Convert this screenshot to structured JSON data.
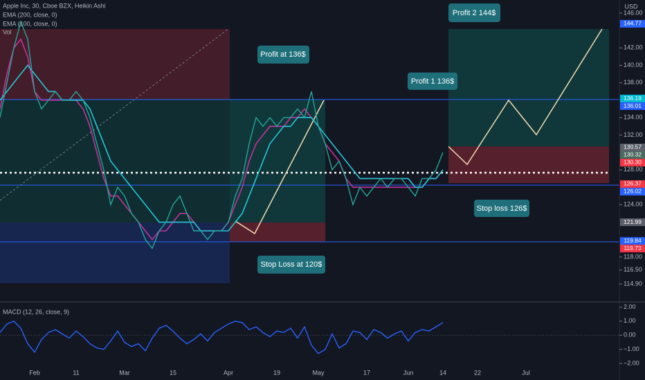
{
  "chart_data": [
    {
      "type": "line",
      "title": "Apple Inc, 30, Cboe BZX, Heikin Ashi",
      "currency": "USD",
      "volume_label": "Vol",
      "categories": [
        null,
        null,
        null,
        null,
        null,
        "Feb",
        null,
        null,
        null,
        null,
        null,
        "11",
        null,
        null,
        null,
        null,
        null,
        null,
        "Mar",
        null,
        null,
        null,
        null,
        null,
        null,
        "15",
        null,
        null,
        null,
        null,
        null,
        null,
        null,
        "Apr",
        null,
        null,
        null,
        null,
        null,
        null,
        "19",
        null,
        null,
        null,
        null,
        null,
        "May",
        null,
        null,
        null,
        null,
        null,
        null,
        "17",
        null,
        null,
        null,
        null,
        null,
        "Jun",
        null,
        null,
        null,
        null,
        "14",
        null,
        null,
        null,
        null,
        "22",
        null,
        null,
        null,
        null,
        null,
        null,
        "Jul"
      ],
      "values": [
        134,
        138,
        142,
        145,
        143,
        137,
        135,
        136,
        137,
        136,
        136,
        137,
        136,
        134,
        131,
        128,
        124,
        126,
        125,
        123,
        122,
        120,
        119,
        121,
        122,
        124,
        125,
        123,
        121,
        121,
        120,
        121,
        121,
        122,
        125,
        127,
        131,
        134,
        133,
        134,
        133,
        134,
        134,
        135,
        134,
        137,
        133,
        131,
        128,
        129,
        127,
        124,
        126,
        125,
        126,
        127,
        126,
        127,
        127,
        126,
        125,
        127,
        127,
        128,
        130,
        null,
        null,
        null,
        null,
        null,
        null,
        null,
        null,
        null,
        null,
        null,
        null
      ],
      "color": "#26a69a",
      "series": [
        {
          "name": "EMA (200, close, 0)",
          "color": "#c2349d",
          "values": [
            135,
            139,
            142,
            143,
            141,
            137,
            136,
            136,
            136,
            136,
            136,
            136,
            135,
            133,
            130,
            127,
            125,
            125,
            124,
            123,
            122,
            121,
            120,
            121,
            121,
            122,
            123,
            123,
            122,
            121,
            121,
            121,
            121,
            122,
            124,
            126,
            129,
            131,
            132,
            133,
            133,
            133,
            134,
            134,
            135,
            134,
            133,
            131,
            130,
            129,
            127,
            126,
            126,
            126,
            126,
            126,
            126,
            126,
            126,
            126,
            126,
            126,
            127,
            127,
            128,
            null,
            null,
            null,
            null,
            null,
            null,
            null,
            null,
            null,
            null,
            null,
            null
          ]
        },
        {
          "name": "EMA (100, close, 0)",
          "color": "#26c6da",
          "values": [
            136,
            137,
            138,
            139,
            140,
            139,
            138,
            137,
            137,
            136,
            136,
            136,
            136,
            135,
            133,
            131,
            129,
            128,
            127,
            126,
            125,
            124,
            123,
            122,
            122,
            122,
            122,
            122,
            122,
            121,
            121,
            121,
            121,
            121,
            122,
            123,
            125,
            127,
            129,
            131,
            132,
            133,
            133,
            134,
            134,
            134,
            133,
            132,
            131,
            130,
            129,
            128,
            127,
            127,
            127,
            127,
            127,
            127,
            127,
            127,
            126,
            126,
            127,
            127,
            128,
            null,
            null,
            null,
            null,
            null,
            null,
            null,
            null,
            null,
            null,
            null,
            null
          ]
        }
      ],
      "ylim": [
        113,
        147.5
      ],
      "yticks": [
        {
          "value": 146,
          "label": "146.00"
        },
        {
          "value": 142,
          "label": "142.00"
        },
        {
          "value": 140,
          "label": "140.00"
        },
        {
          "value": 138,
          "label": "138.00"
        },
        {
          "value": 134,
          "label": "134.00"
        },
        {
          "value": 132,
          "label": "132.00"
        },
        {
          "value": 128,
          "label": "128.00"
        },
        {
          "value": 124,
          "label": "124.00"
        },
        {
          "value": 118,
          "label": "118.00"
        },
        {
          "value": 116.5,
          "label": "116.50"
        },
        {
          "value": 114.9,
          "label": "114.90"
        }
      ],
      "price_tags": [
        {
          "value": 144.77,
          "color": "#2962ff"
        },
        {
          "value": 136.19,
          "color": "#00bcd4"
        },
        {
          "value": 136.01,
          "color": "#2962ff"
        },
        {
          "value": 130.57,
          "color": "#5d606b"
        },
        {
          "value": 130.32,
          "color": "#4a6a5f"
        },
        {
          "value": {
            "value": 130.3,
            "label": "130.30"
          },
          "color": "#f23645"
        },
        {
          "value": 126.37,
          "color": "#f23645"
        },
        {
          "value": 126.02,
          "color": "#2962ff"
        },
        {
          "value": 121.99,
          "color": "#5d606b"
        },
        {
          "value": 119.84,
          "color": "#2962ff"
        },
        {
          "value": 119.73,
          "color": "#f23645"
        }
      ],
      "annotations": [
        "Profit at 136$",
        "Stop Loss at 120$",
        "Profit 1 136$",
        "Profit 2 144$",
        "Stop loss 126$"
      ]
    },
    {
      "type": "line",
      "title": "MACD (12, 26, close, 9)",
      "color": "#2962ff",
      "values": [
        0.2,
        0.8,
        1.0,
        0.5,
        -0.6,
        -1.2,
        -0.3,
        0.2,
        0.4,
        0.1,
        -0.2,
        0.3,
        -0.1,
        -0.6,
        -0.9,
        -1.0,
        -0.4,
        0.3,
        -0.5,
        -0.8,
        -0.6,
        -1.1,
        -0.2,
        0.5,
        0.7,
        0.3,
        -0.2,
        -0.6,
        -0.3,
        0.1,
        -0.4,
        0.2,
        0.5,
        0.8,
        1.0,
        0.9,
        0.4,
        0.6,
        0.2,
        -0.1,
        0.3,
        0.2,
        0.5,
        -0.2,
        0.6,
        -0.7,
        -1.3,
        -1.0,
        0.1,
        -0.9,
        -0.6,
        0.3,
        0.2,
        -0.3,
        0.4,
        0.2,
        -0.2,
        0.1,
        0.3,
        -0.4,
        0.2,
        0.4,
        0.3,
        0.6,
        0.9
      ],
      "ylim": [
        -2.44,
        2.22
      ],
      "yticks": [
        {
          "value": 2,
          "label": "2.00"
        },
        {
          "value": 1,
          "label": "1.00"
        },
        {
          "value": 0,
          "label": "0.00"
        },
        {
          "value": -1,
          "label": "−1.00"
        },
        {
          "value": -2,
          "label": "−2.00"
        }
      ]
    }
  ]
}
